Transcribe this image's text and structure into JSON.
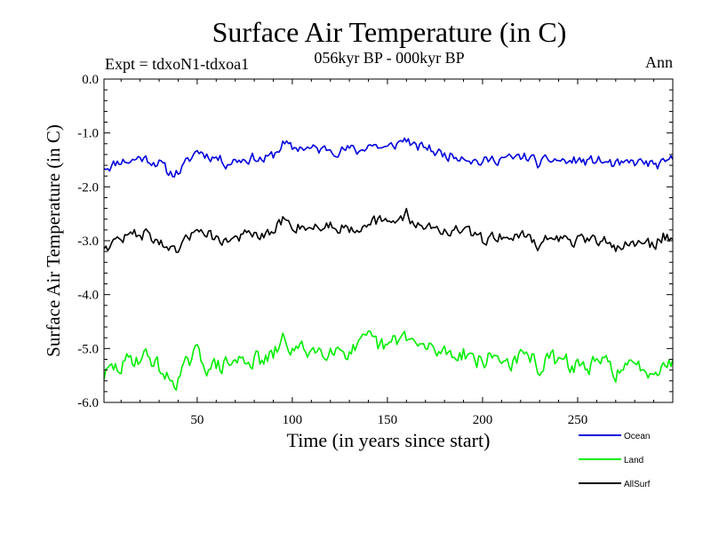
{
  "chart_data": {
    "type": "line",
    "title": "Surface Air Temperature (in C)",
    "subtitle": "056kyr BP - 000kyr BP",
    "expt_label": "Expt = tdxoN1-tdxoa1",
    "period_label": "Ann",
    "xlabel": "Time (in years since start)",
    "ylabel": "Surface Air Temperature (in C)",
    "xlim": [
      1,
      300
    ],
    "ylim": [
      -6.0,
      0.0
    ],
    "x_ticks": [
      50,
      100,
      150,
      200,
      250
    ],
    "x_tick_labels": [
      "50",
      "100",
      "150",
      "200",
      "250"
    ],
    "y_ticks": [
      0.0,
      -1.0,
      -2.0,
      -3.0,
      -4.0,
      -5.0,
      -6.0
    ],
    "y_tick_labels": [
      "0.0",
      "-1.0",
      "-2.0",
      "-3.0",
      "-4.0",
      "-5.0",
      "-6.0"
    ],
    "grid": false,
    "legend_position": "bottom-right, below plot",
    "series": [
      {
        "name": "Ocean",
        "color": "#0000dd",
        "control_points": [
          [
            1,
            -1.62
          ],
          [
            5,
            -1.6
          ],
          [
            10,
            -1.5
          ],
          [
            15,
            -1.52
          ],
          [
            20,
            -1.45
          ],
          [
            25,
            -1.5
          ],
          [
            30,
            -1.55
          ],
          [
            35,
            -1.75
          ],
          [
            40,
            -1.72
          ],
          [
            45,
            -1.55
          ],
          [
            50,
            -1.32
          ],
          [
            55,
            -1.4
          ],
          [
            60,
            -1.45
          ],
          [
            65,
            -1.55
          ],
          [
            70,
            -1.5
          ],
          [
            75,
            -1.48
          ],
          [
            80,
            -1.45
          ],
          [
            85,
            -1.5
          ],
          [
            90,
            -1.42
          ],
          [
            95,
            -1.2
          ],
          [
            100,
            -1.3
          ],
          [
            105,
            -1.25
          ],
          [
            110,
            -1.3
          ],
          [
            115,
            -1.32
          ],
          [
            120,
            -1.28
          ],
          [
            125,
            -1.32
          ],
          [
            130,
            -1.3
          ],
          [
            135,
            -1.35
          ],
          [
            140,
            -1.2
          ],
          [
            145,
            -1.25
          ],
          [
            150,
            -1.3
          ],
          [
            155,
            -1.2
          ],
          [
            160,
            -1.1
          ],
          [
            165,
            -1.3
          ],
          [
            170,
            -1.25
          ],
          [
            175,
            -1.35
          ],
          [
            180,
            -1.4
          ],
          [
            185,
            -1.42
          ],
          [
            190,
            -1.4
          ],
          [
            195,
            -1.5
          ],
          [
            200,
            -1.55
          ],
          [
            205,
            -1.5
          ],
          [
            210,
            -1.45
          ],
          [
            215,
            -1.5
          ],
          [
            220,
            -1.45
          ],
          [
            225,
            -1.45
          ],
          [
            230,
            -1.6
          ],
          [
            235,
            -1.5
          ],
          [
            240,
            -1.5
          ],
          [
            245,
            -1.55
          ],
          [
            250,
            -1.5
          ],
          [
            255,
            -1.55
          ],
          [
            260,
            -1.5
          ],
          [
            265,
            -1.55
          ],
          [
            270,
            -1.6
          ],
          [
            275,
            -1.6
          ],
          [
            280,
            -1.55
          ],
          [
            285,
            -1.55
          ],
          [
            290,
            -1.6
          ],
          [
            295,
            -1.6
          ],
          [
            300,
            -1.5
          ]
        ],
        "noise_amplitude": 0.09,
        "seed": 11
      },
      {
        "name": "Land",
        "color": "#00ee00",
        "control_points": [
          [
            1,
            -5.5
          ],
          [
            5,
            -5.4
          ],
          [
            10,
            -5.35
          ],
          [
            15,
            -5.2
          ],
          [
            20,
            -5.15
          ],
          [
            25,
            -5.15
          ],
          [
            30,
            -5.35
          ],
          [
            35,
            -5.6
          ],
          [
            40,
            -5.55
          ],
          [
            45,
            -5.3
          ],
          [
            50,
            -5.1
          ],
          [
            55,
            -5.3
          ],
          [
            60,
            -5.35
          ],
          [
            65,
            -5.3
          ],
          [
            70,
            -5.25
          ],
          [
            75,
            -5.2
          ],
          [
            80,
            -5.2
          ],
          [
            85,
            -5.25
          ],
          [
            90,
            -5.15
          ],
          [
            95,
            -4.85
          ],
          [
            100,
            -5.0
          ],
          [
            105,
            -5.05
          ],
          [
            110,
            -5.0
          ],
          [
            115,
            -5.05
          ],
          [
            120,
            -4.95
          ],
          [
            125,
            -5.0
          ],
          [
            130,
            -5.05
          ],
          [
            135,
            -5.0
          ],
          [
            140,
            -4.85
          ],
          [
            145,
            -4.95
          ],
          [
            150,
            -5.0
          ],
          [
            155,
            -4.85
          ],
          [
            160,
            -4.75
          ],
          [
            165,
            -4.95
          ],
          [
            170,
            -5.0
          ],
          [
            175,
            -5.05
          ],
          [
            180,
            -5.05
          ],
          [
            185,
            -5.1
          ],
          [
            190,
            -5.05
          ],
          [
            195,
            -5.15
          ],
          [
            200,
            -5.25
          ],
          [
            205,
            -5.15
          ],
          [
            210,
            -5.2
          ],
          [
            215,
            -5.25
          ],
          [
            220,
            -5.2
          ],
          [
            225,
            -5.15
          ],
          [
            230,
            -5.35
          ],
          [
            235,
            -5.2
          ],
          [
            240,
            -5.25
          ],
          [
            245,
            -5.3
          ],
          [
            250,
            -5.3
          ],
          [
            255,
            -5.35
          ],
          [
            260,
            -5.3
          ],
          [
            265,
            -5.3
          ],
          [
            270,
            -5.4
          ],
          [
            275,
            -5.4
          ],
          [
            280,
            -5.35
          ],
          [
            285,
            -5.35
          ],
          [
            290,
            -5.4
          ],
          [
            295,
            -5.2
          ],
          [
            300,
            -5.3
          ]
        ],
        "noise_amplitude": 0.15,
        "seed": 29
      },
      {
        "name": "AllSurf",
        "color": "#000000",
        "control_points": [
          [
            1,
            -3.1
          ],
          [
            5,
            -3.05
          ],
          [
            10,
            -2.95
          ],
          [
            15,
            -2.9
          ],
          [
            20,
            -2.85
          ],
          [
            25,
            -2.9
          ],
          [
            30,
            -3.0
          ],
          [
            35,
            -3.25
          ],
          [
            40,
            -3.2
          ],
          [
            45,
            -3.0
          ],
          [
            50,
            -2.7
          ],
          [
            55,
            -2.85
          ],
          [
            60,
            -2.95
          ],
          [
            65,
            -3.0
          ],
          [
            70,
            -2.95
          ],
          [
            75,
            -2.9
          ],
          [
            80,
            -2.9
          ],
          [
            85,
            -2.95
          ],
          [
            90,
            -2.85
          ],
          [
            95,
            -2.6
          ],
          [
            100,
            -2.75
          ],
          [
            105,
            -2.7
          ],
          [
            110,
            -2.75
          ],
          [
            115,
            -2.75
          ],
          [
            120,
            -2.7
          ],
          [
            125,
            -2.75
          ],
          [
            130,
            -2.75
          ],
          [
            135,
            -2.75
          ],
          [
            140,
            -2.6
          ],
          [
            145,
            -2.65
          ],
          [
            150,
            -2.7
          ],
          [
            155,
            -2.6
          ],
          [
            160,
            -2.5
          ],
          [
            165,
            -2.7
          ],
          [
            170,
            -2.7
          ],
          [
            175,
            -2.8
          ],
          [
            180,
            -2.8
          ],
          [
            185,
            -2.85
          ],
          [
            190,
            -2.8
          ],
          [
            195,
            -2.9
          ],
          [
            200,
            -3.0
          ],
          [
            205,
            -2.9
          ],
          [
            210,
            -2.9
          ],
          [
            215,
            -2.95
          ],
          [
            220,
            -2.9
          ],
          [
            225,
            -2.9
          ],
          [
            230,
            -3.1
          ],
          [
            235,
            -2.95
          ],
          [
            240,
            -2.95
          ],
          [
            245,
            -3.0
          ],
          [
            250,
            -3.0
          ],
          [
            255,
            -3.05
          ],
          [
            260,
            -3.0
          ],
          [
            265,
            -3.0
          ],
          [
            270,
            -3.1
          ],
          [
            275,
            -3.1
          ],
          [
            280,
            -3.05
          ],
          [
            285,
            -3.05
          ],
          [
            290,
            -3.1
          ],
          [
            295,
            -2.9
          ],
          [
            300,
            -2.95
          ]
        ],
        "noise_amplitude": 0.1,
        "seed": 47
      }
    ]
  }
}
